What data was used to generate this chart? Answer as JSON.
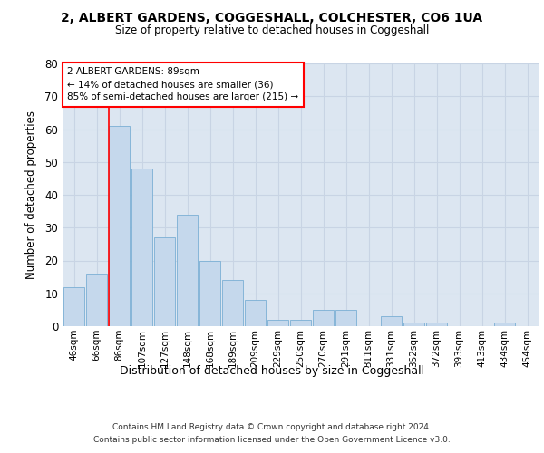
{
  "title": "2, ALBERT GARDENS, COGGESHALL, COLCHESTER, CO6 1UA",
  "subtitle": "Size of property relative to detached houses in Coggeshall",
  "xlabel": "Distribution of detached houses by size in Coggeshall",
  "ylabel": "Number of detached properties",
  "bar_color": "#c5d8ec",
  "bar_edge_color": "#7aafd4",
  "background_color": "#dce6f1",
  "grid_color": "#c8d4e4",
  "categories": [
    "46sqm",
    "66sqm",
    "86sqm",
    "107sqm",
    "127sqm",
    "148sqm",
    "168sqm",
    "189sqm",
    "209sqm",
    "229sqm",
    "250sqm",
    "270sqm",
    "291sqm",
    "311sqm",
    "331sqm",
    "352sqm",
    "372sqm",
    "393sqm",
    "413sqm",
    "434sqm",
    "454sqm"
  ],
  "values": [
    12,
    16,
    61,
    48,
    27,
    34,
    20,
    14,
    8,
    2,
    2,
    5,
    5,
    0,
    3,
    1,
    1,
    0,
    0,
    1,
    0
  ],
  "ylim": [
    0,
    80
  ],
  "yticks": [
    0,
    10,
    20,
    30,
    40,
    50,
    60,
    70,
    80
  ],
  "red_line_index": 2,
  "annotation_line1": "2 ALBERT GARDENS: 89sqm",
  "annotation_line2": "← 14% of detached houses are smaller (36)",
  "annotation_line3": "85% of semi-detached houses are larger (215) →",
  "footer1": "Contains HM Land Registry data © Crown copyright and database right 2024.",
  "footer2": "Contains public sector information licensed under the Open Government Licence v3.0."
}
